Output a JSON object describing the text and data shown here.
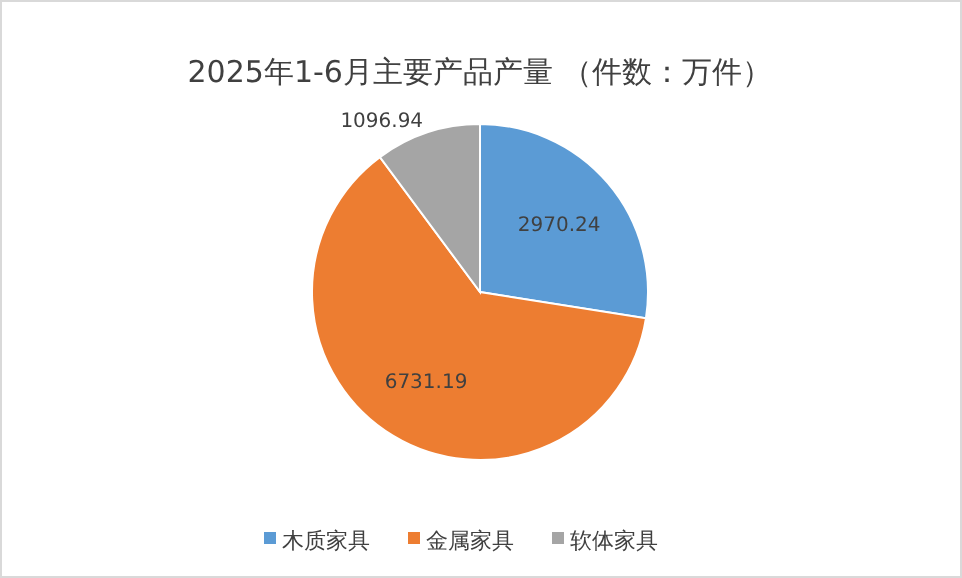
{
  "chart_data": {
    "type": "pie",
    "title": "2025年1-6月主要产品产量 （件数：万件）",
    "categories": [
      "木质家具",
      "金属家具",
      "软体家具"
    ],
    "values": [
      2970.24,
      6731.19,
      1096.94
    ],
    "colors": [
      "#5b9bd5",
      "#ed7d31",
      "#a5a5a5"
    ],
    "data_labels": true,
    "legend": "bottom"
  }
}
